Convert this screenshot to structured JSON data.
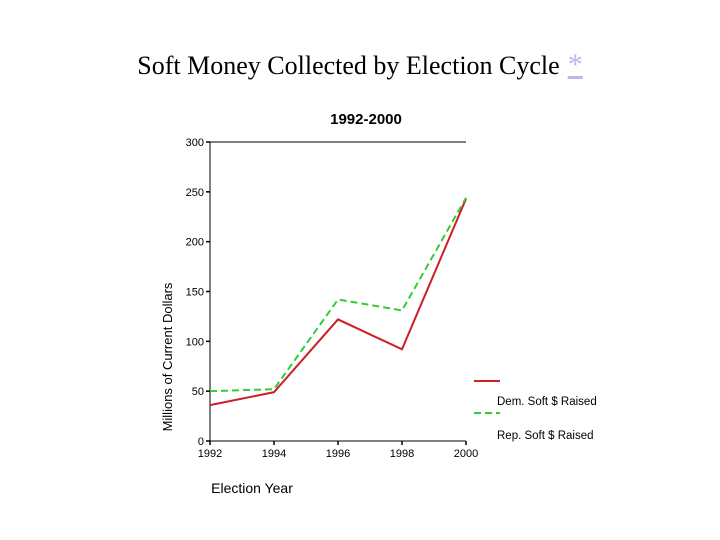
{
  "slide": {
    "title": "Soft Money Collected by Election Cycle",
    "link_symbol": "*"
  },
  "colors": {
    "dem": "#cc1f26",
    "rep": "#33cc33",
    "axis": "#000000",
    "link": "#b7b7ef"
  },
  "chart_data": {
    "type": "line",
    "title": "1992-2000",
    "xlabel": "Election Year",
    "ylabel": "Millions of Current Dollars",
    "x": [
      1992,
      1994,
      1996,
      1998,
      2000
    ],
    "xticks": [
      "1992",
      "1994",
      "1996",
      "1998",
      "2000"
    ],
    "yticks": [
      "0",
      "50",
      "100",
      "150",
      "200",
      "250",
      "300"
    ],
    "ylim": [
      0,
      300
    ],
    "series": [
      {
        "name": "Dem. Soft $ Raised",
        "style": "solid",
        "values": [
          36,
          49,
          122,
          92,
          243
        ]
      },
      {
        "name": "Rep. Soft $ Raised",
        "style": "dashed",
        "values": [
          50,
          52,
          142,
          131,
          244
        ]
      }
    ],
    "legend_position": "bottom-right"
  }
}
